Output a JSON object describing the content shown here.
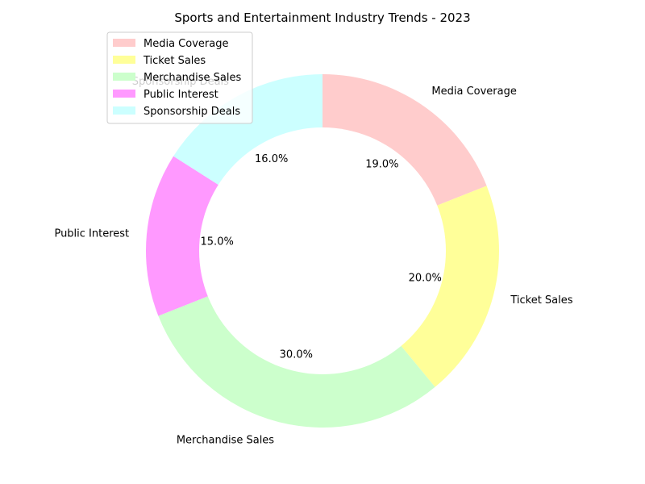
{
  "chart_data": {
    "type": "pie",
    "variant": "donut",
    "title": "Sports and Entertainment Industry Trends - 2023",
    "categories": [
      "Media Coverage",
      "Ticket Sales",
      "Merchandise Sales",
      "Public Interest",
      "Sponsorship Deals"
    ],
    "values": [
      19.0,
      20.0,
      30.0,
      15.0,
      16.0
    ],
    "value_labels": [
      "19.0%",
      "20.0%",
      "30.0%",
      "15.0%",
      "16.0%"
    ],
    "colors": [
      "#ffcccc",
      "#ffff99",
      "#ccffcc",
      "#ff99ff",
      "#ccffff"
    ],
    "start_angle_deg": 90,
    "direction": "clockwise",
    "legend": "top-left"
  }
}
